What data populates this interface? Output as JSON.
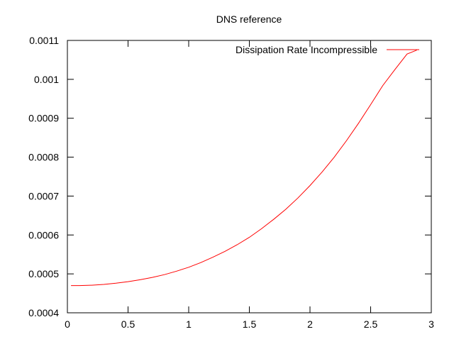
{
  "chart_data": {
    "type": "line",
    "title": "DNS reference",
    "xlabel": "",
    "ylabel": "",
    "xlim": [
      0,
      3
    ],
    "ylim": [
      0.0004,
      0.0011
    ],
    "xticks": [
      0,
      0.5,
      1,
      1.5,
      2,
      2.5,
      3
    ],
    "xtick_labels": [
      "0",
      "0.5",
      "1",
      "1.5",
      "2",
      "2.5",
      "3"
    ],
    "yticks": [
      0.0004,
      0.0005,
      0.0006,
      0.0007,
      0.0008,
      0.0009,
      0.001,
      0.0011
    ],
    "ytick_labels": [
      "0.0004",
      "0.0005",
      "0.0006",
      "0.0007",
      "0.0008",
      "0.0009",
      "0.001",
      "0.0011"
    ],
    "grid": false,
    "legend_position": "top-right",
    "series": [
      {
        "name": "Dissipation Rate Incompressible",
        "color": "#ff0000",
        "x": [
          0.03,
          0.1,
          0.2,
          0.3,
          0.4,
          0.5,
          0.6,
          0.7,
          0.8,
          0.9,
          1.0,
          1.1,
          1.2,
          1.3,
          1.4,
          1.5,
          1.6,
          1.7,
          1.8,
          1.9,
          2.0,
          2.1,
          2.2,
          2.3,
          2.4,
          2.5,
          2.6,
          2.7,
          2.8,
          2.88
        ],
        "y": [
          0.00047,
          0.00047,
          0.000471,
          0.000473,
          0.000476,
          0.00048,
          0.000485,
          0.000491,
          0.000498,
          0.000507,
          0.000517,
          0.000529,
          0.000543,
          0.000558,
          0.000575,
          0.000594,
          0.000616,
          0.00064,
          0.000666,
          0.000695,
          0.000727,
          0.000762,
          0.0008,
          0.000842,
          0.000887,
          0.000935,
          0.000984,
          0.001025,
          0.001065,
          0.001075
        ]
      }
    ]
  }
}
